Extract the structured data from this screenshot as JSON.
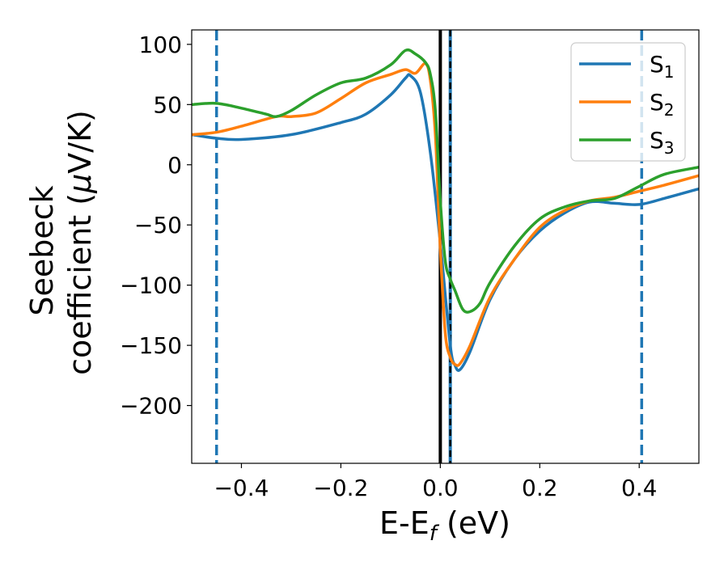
{
  "chart_data": {
    "type": "line",
    "title": "",
    "xlabel": {
      "main": "E-E",
      "sub": "f",
      "tail": " (eV)"
    },
    "ylabel": {
      "line1": "Seebeck",
      "line2_prefix": "coefficient  (",
      "mu": "μ",
      "line2_suffix": "V/K)"
    },
    "xlim": [
      -0.5,
      0.52
    ],
    "ylim": [
      -248,
      112
    ],
    "xticks": [
      -0.4,
      -0.2,
      0.0,
      0.2,
      0.4
    ],
    "xtick_labels": [
      "−0.4",
      "−0.2",
      "0.0",
      "0.2",
      "0.4"
    ],
    "yticks": [
      100,
      50,
      0,
      -50,
      -100,
      -150,
      -200
    ],
    "ytick_labels": [
      "100",
      "50",
      "0",
      "−50",
      "−100",
      "−150",
      "−200"
    ],
    "grid": false,
    "legend_position": "top-right",
    "vlines": [
      {
        "x": -0.45,
        "style": "dashed",
        "color": "#1f77b4"
      },
      {
        "x": 0.0,
        "style": "solid",
        "color": "#000000"
      },
      {
        "x": 0.02,
        "style": "dashed-overlay",
        "color": "#000000"
      },
      {
        "x": 0.405,
        "style": "dashed",
        "color": "#1f77b4"
      }
    ],
    "series": [
      {
        "name": "S",
        "sub": "1",
        "color": "#1f77b4",
        "x": [
          -0.5,
          -0.45,
          -0.4,
          -0.3,
          -0.2,
          -0.15,
          -0.1,
          -0.07,
          -0.06,
          -0.04,
          -0.02,
          0.0,
          0.02,
          0.03,
          0.04,
          0.06,
          0.1,
          0.15,
          0.2,
          0.25,
          0.3,
          0.35,
          0.4,
          0.45,
          0.52
        ],
        "y": [
          25,
          22,
          21,
          25,
          35,
          42,
          58,
          72,
          74,
          60,
          10,
          -65,
          -150,
          -167,
          -170,
          -155,
          -112,
          -78,
          -55,
          -40,
          -31,
          -32,
          -33,
          -28,
          -20
        ]
      },
      {
        "name": "S",
        "sub": "2",
        "color": "#ff7f0e",
        "x": [
          -0.5,
          -0.45,
          -0.4,
          -0.33,
          -0.3,
          -0.25,
          -0.2,
          -0.15,
          -0.1,
          -0.07,
          -0.05,
          -0.03,
          -0.02,
          -0.01,
          0.0,
          0.01,
          0.02,
          0.03,
          0.04,
          0.06,
          0.1,
          0.15,
          0.2,
          0.25,
          0.3,
          0.35,
          0.4,
          0.45,
          0.52
        ],
        "y": [
          25,
          27,
          32,
          40,
          40,
          43,
          55,
          68,
          75,
          79,
          76,
          84,
          70,
          25,
          -70,
          -140,
          -160,
          -166,
          -165,
          -150,
          -110,
          -78,
          -52,
          -38,
          -30,
          -27,
          -22,
          -17,
          -9
        ]
      },
      {
        "name": "S",
        "sub": "3",
        "color": "#2ca02c",
        "x": [
          -0.5,
          -0.45,
          -0.4,
          -0.35,
          -0.33,
          -0.3,
          -0.25,
          -0.2,
          -0.15,
          -0.1,
          -0.07,
          -0.05,
          -0.03,
          -0.02,
          -0.01,
          0.0,
          0.01,
          0.02,
          0.03,
          0.045,
          0.06,
          0.08,
          0.1,
          0.15,
          0.2,
          0.25,
          0.3,
          0.35,
          0.4,
          0.45,
          0.52
        ],
        "y": [
          50,
          51,
          47,
          42,
          40,
          45,
          58,
          68,
          72,
          83,
          95,
          92,
          85,
          75,
          45,
          -30,
          -80,
          -95,
          -105,
          -120,
          -122,
          -115,
          -98,
          -67,
          -45,
          -35,
          -30,
          -28,
          -18,
          -8,
          -2
        ]
      }
    ]
  }
}
